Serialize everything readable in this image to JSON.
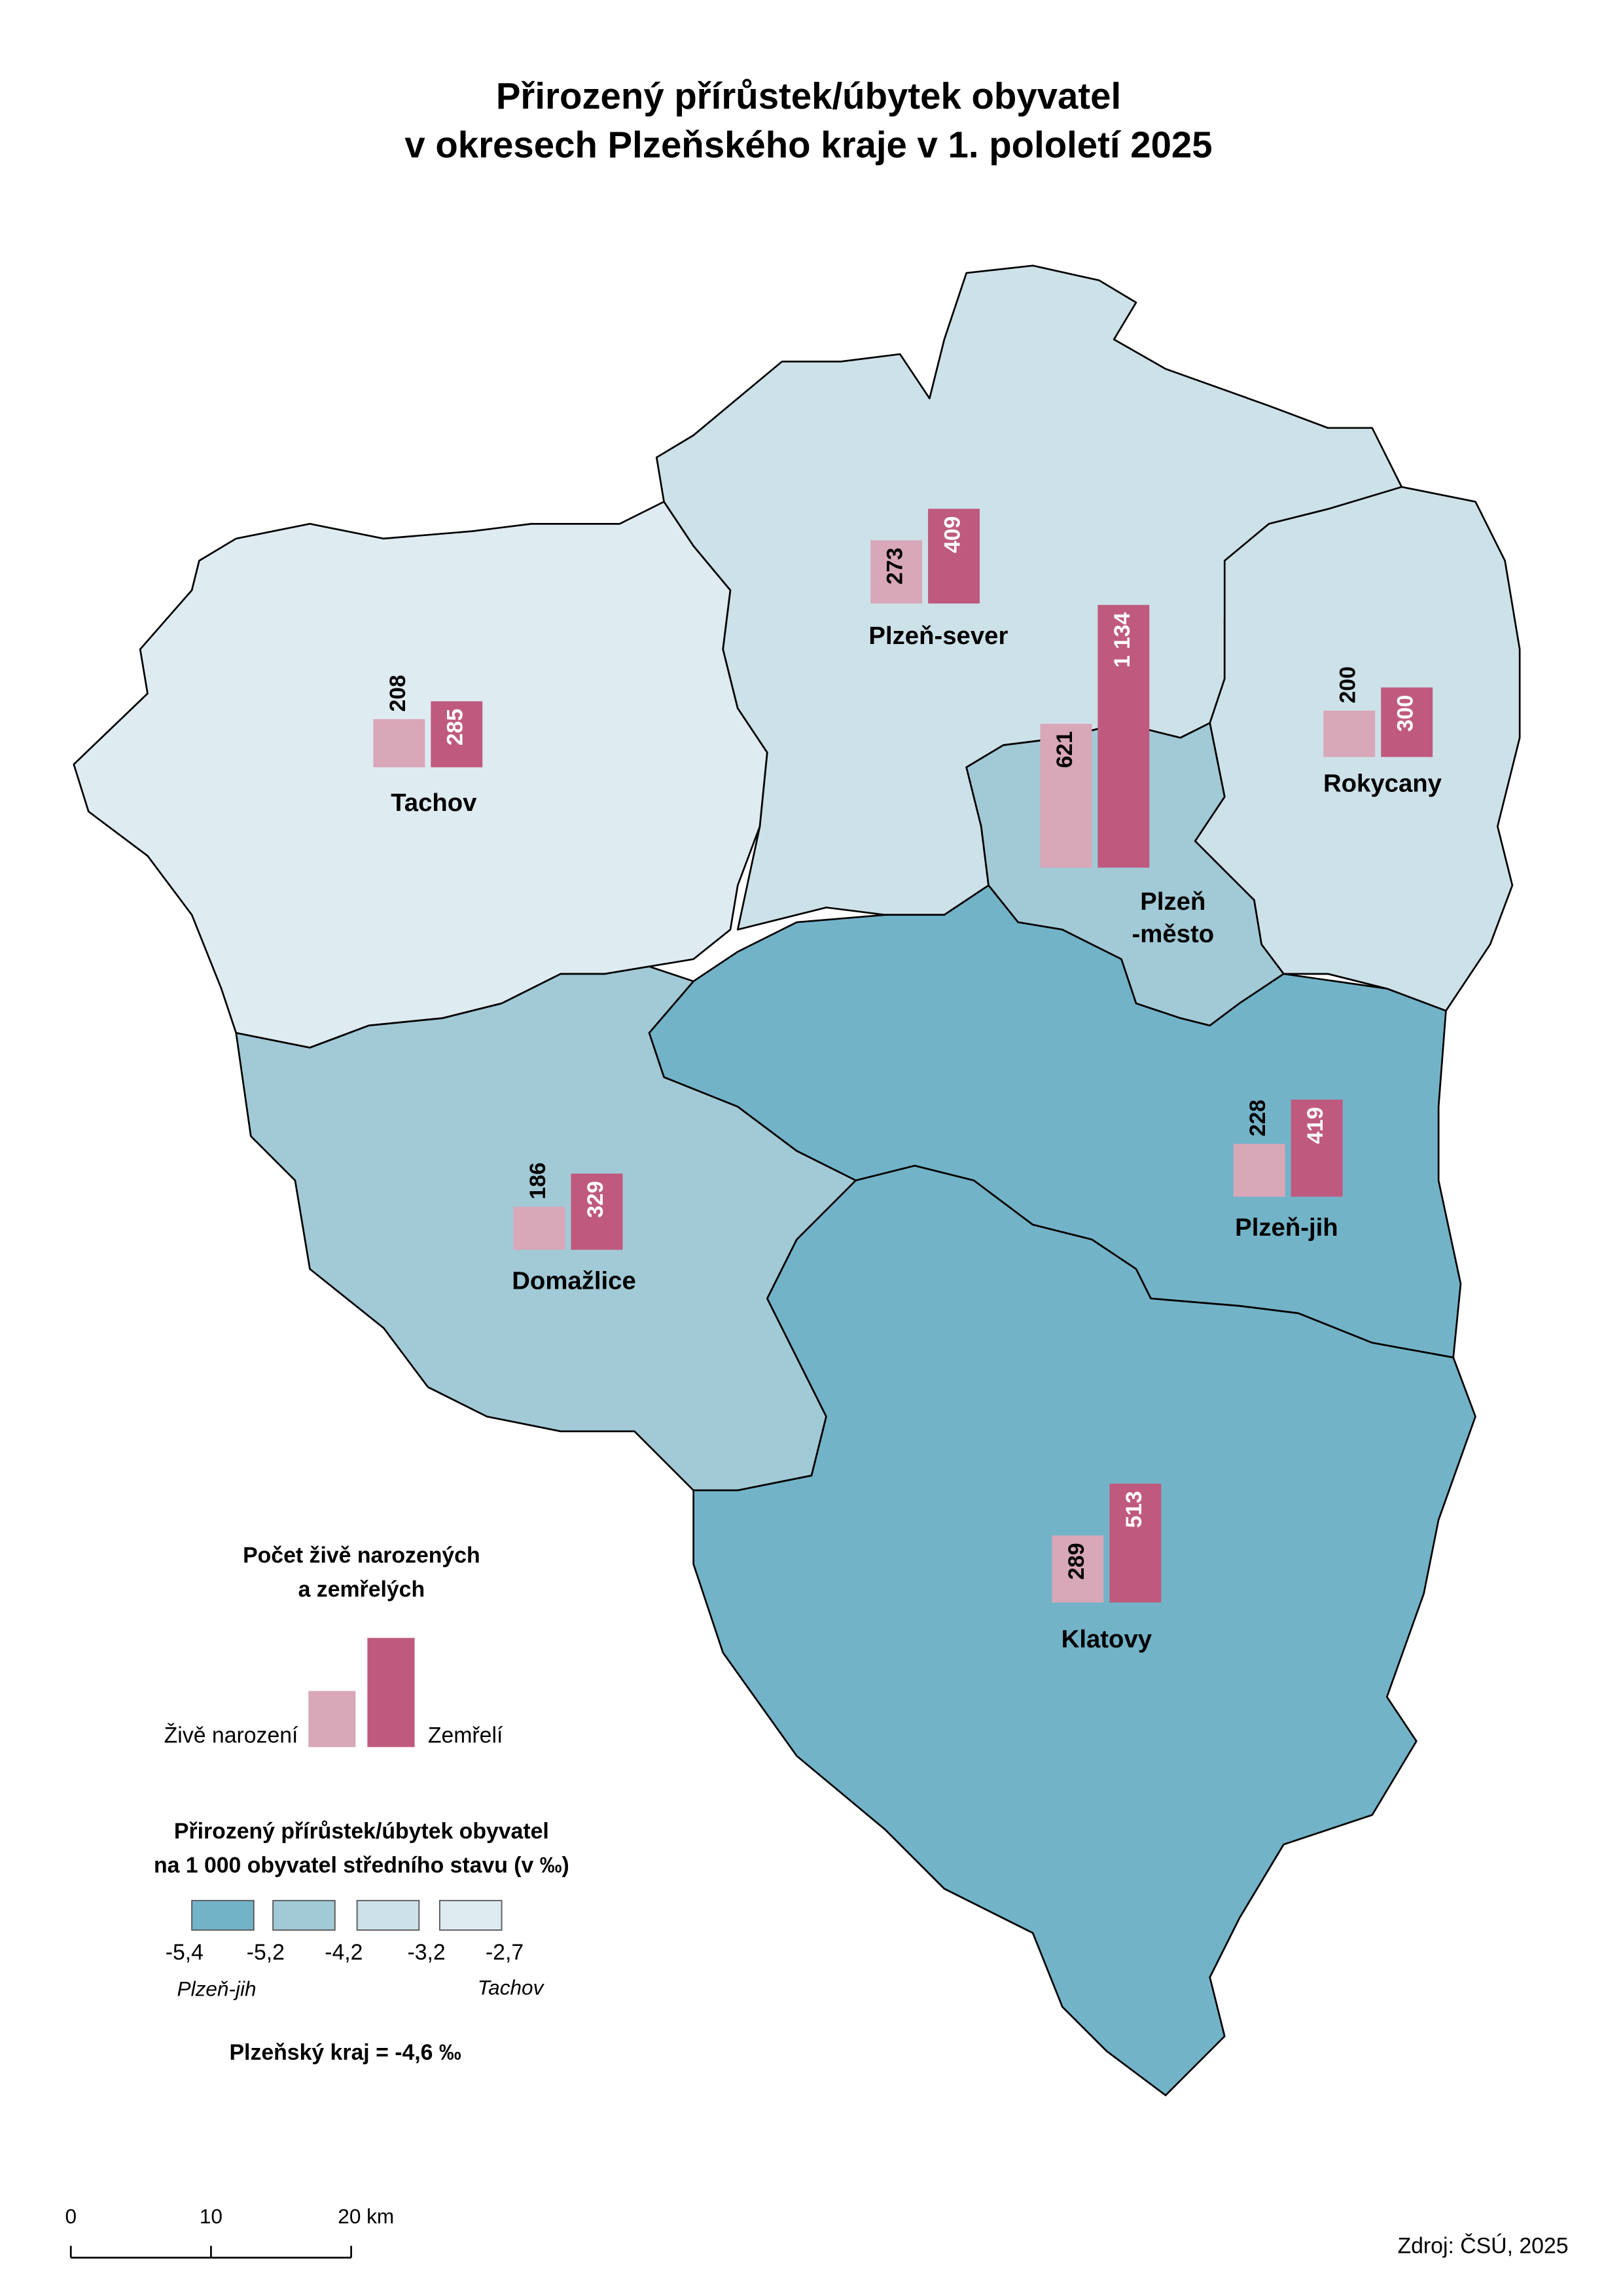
{
  "title": [
    "Přirozený přírůstek/úbytek obyvatel",
    "v okresech Plzeňského kraje v 1. pololetí 2025"
  ],
  "births_color": "#d8a7b8",
  "deaths_color": "#bf5a7e",
  "districts": [
    {
      "name": "Tachov",
      "births": 208,
      "deaths": 285,
      "color": "#deebf1"
    },
    {
      "name": "Plzeň-sever",
      "births": 273,
      "deaths": 409,
      "color": "#cde1e9"
    },
    {
      "name": [
        "Plzeň",
        "-město"
      ],
      "births": 621,
      "deaths": {
        "value": 1134,
        "label": "1 134"
      },
      "color": "#a2c9d6"
    },
    {
      "name": "Rokycany",
      "births": 200,
      "deaths": 300,
      "color": "#cde1e9"
    },
    {
      "name": "Plzeň-jih",
      "births": 228,
      "deaths": 419,
      "color": "#73b3c8"
    },
    {
      "name": "Domažlice",
      "births": 186,
      "deaths": 329,
      "color": "#a2c9d6"
    },
    {
      "name": "Klatovy",
      "births": 289,
      "deaths": 513,
      "color": "#73b3c8"
    }
  ],
  "legend_bars": {
    "title": [
      "Počet živě narozených",
      "a zemřelých"
    ],
    "births": "Živě narození",
    "deaths": "Zemřelí"
  },
  "legend_classes": {
    "title": [
      "Přirozený přírůstek/úbytek obyvatel",
      "na 1 000 obyvatel středního stavu (v ‰)"
    ],
    "colors": [
      "#73b3c8",
      "#a2c9d6",
      "#cde1e9",
      "#deebf1"
    ],
    "breaks": [
      "-5,4",
      "-5,2",
      "-4,2",
      "-3,2",
      "-2,7"
    ],
    "min_district": "Plzeň-jih",
    "max_district": "Tachov"
  },
  "region_total": "Plzeňský kraj = -4,6 ‰",
  "scale": [
    "0",
    "10",
    "20 km"
  ],
  "source": "Zdroj: ČSÚ, 2025"
}
